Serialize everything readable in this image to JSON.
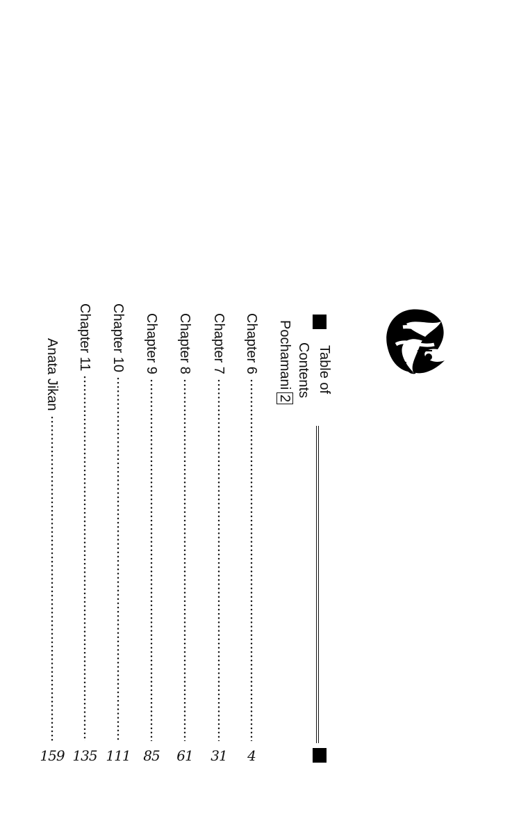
{
  "heading": {
    "line1": "Table of",
    "line2": "Contents"
  },
  "series": {
    "title": "Pochamani",
    "volume": "2"
  },
  "entries": [
    {
      "label": "Chapter 6",
      "page": "4"
    },
    {
      "label": "Chapter 7",
      "page": "31"
    },
    {
      "label": "Chapter 8",
      "page": "61"
    },
    {
      "label": "Chapter 9",
      "page": "85"
    },
    {
      "label": "Chapter 10",
      "page": "111"
    },
    {
      "label": "Chapter 11",
      "page": "135"
    },
    {
      "label": "Anata Jikan",
      "page": "159"
    }
  ],
  "logo": {
    "icon": "stylized-face-with-swirled-hair-logo"
  }
}
